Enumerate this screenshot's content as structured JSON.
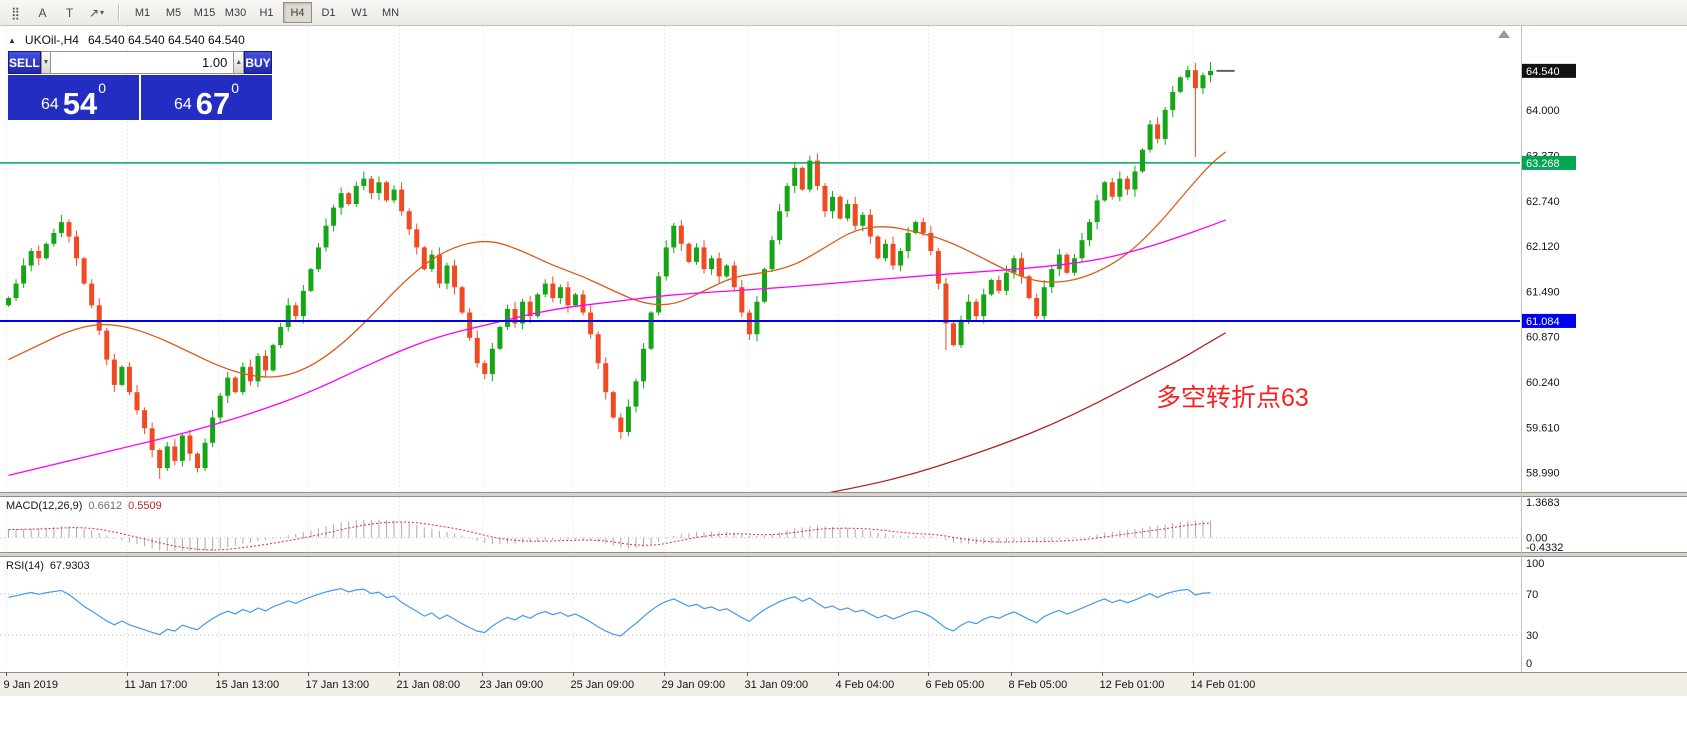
{
  "toolbar": {
    "icons": [
      {
        "name": "snap-grid-icon",
        "glyph": "⣿"
      },
      {
        "name": "text-label-icon",
        "glyph": "A"
      },
      {
        "name": "text-frame-icon",
        "glyph": "T"
      },
      {
        "name": "draw-tools-icon",
        "glyph": "↗",
        "dropdown": true
      }
    ],
    "timeframes": [
      "M1",
      "M5",
      "M15",
      "M30",
      "H1",
      "H4",
      "D1",
      "W1",
      "MN"
    ],
    "active_timeframe": "H4"
  },
  "chart": {
    "title": "UKOil-,H4",
    "quote": "64.540 64.540 64.540 64.540"
  },
  "trade_panel": {
    "sell_label": "SELL",
    "buy_label": "BUY",
    "volume": "1.00",
    "sell_price": {
      "whole": "64",
      "pips": "54",
      "pipette": "0"
    },
    "buy_price": {
      "whole": "64",
      "pips": "67",
      "pipette": "0"
    }
  },
  "chart_data": {
    "type": "candlestick",
    "symbol": "UKOil-",
    "timeframe": "H4",
    "ylim": [
      58.72,
      65.16
    ],
    "grid_prices": [
      {
        "v": 64.0,
        "label": "64.000"
      },
      {
        "v": 63.37,
        "label": "63.370"
      },
      {
        "v": 62.74,
        "label": "62.740"
      },
      {
        "v": 62.12,
        "label": "62.120"
      },
      {
        "v": 61.49,
        "label": "61.490"
      },
      {
        "v": 60.87,
        "label": "60.870"
      },
      {
        "v": 60.24,
        "label": "60.240"
      },
      {
        "v": 59.61,
        "label": "59.610"
      },
      {
        "v": 58.99,
        "label": "58.990"
      }
    ],
    "first_open": 61.3,
    "closes": [
      61.4,
      61.6,
      61.85,
      62.05,
      61.95,
      62.15,
      62.3,
      62.45,
      62.25,
      61.95,
      61.6,
      61.3,
      60.95,
      60.55,
      60.2,
      60.45,
      60.1,
      59.85,
      59.6,
      59.3,
      59.05,
      59.35,
      59.15,
      59.5,
      59.25,
      59.05,
      59.4,
      59.75,
      60.05,
      60.3,
      60.1,
      60.45,
      60.25,
      60.6,
      60.4,
      60.75,
      61.0,
      61.3,
      61.15,
      61.5,
      61.8,
      62.1,
      62.4,
      62.65,
      62.85,
      62.7,
      62.95,
      63.05,
      62.85,
      63.0,
      62.75,
      62.9,
      62.6,
      62.35,
      62.1,
      61.8,
      62.0,
      61.6,
      61.85,
      61.55,
      61.2,
      60.85,
      60.5,
      60.35,
      60.7,
      61.0,
      61.25,
      61.05,
      61.35,
      61.15,
      61.45,
      61.6,
      61.4,
      61.55,
      61.3,
      61.45,
      61.2,
      60.9,
      60.5,
      60.1,
      59.75,
      59.55,
      59.9,
      60.25,
      60.7,
      61.2,
      61.7,
      62.1,
      62.4,
      62.15,
      61.9,
      62.1,
      61.8,
      61.95,
      61.7,
      61.85,
      61.55,
      61.2,
      60.9,
      61.35,
      61.8,
      62.2,
      62.6,
      62.95,
      63.2,
      62.9,
      63.3,
      62.95,
      62.6,
      62.8,
      62.5,
      62.7,
      62.4,
      62.55,
      62.25,
      61.95,
      62.15,
      61.85,
      62.05,
      62.3,
      62.45,
      62.3,
      62.05,
      61.6,
      61.05,
      60.75,
      61.1,
      61.35,
      61.15,
      61.45,
      61.65,
      61.5,
      61.75,
      61.95,
      61.7,
      61.4,
      61.15,
      61.55,
      61.8,
      62.0,
      61.75,
      61.95,
      62.2,
      62.45,
      62.75,
      63.0,
      62.8,
      63.05,
      62.9,
      63.15,
      63.45,
      63.8,
      63.6,
      64.0,
      64.25,
      64.45,
      64.55,
      64.3,
      64.48,
      64.54
    ],
    "wick_overrides": {
      "20": {
        "low": 58.9
      },
      "25": {
        "low": 58.99
      },
      "63": {
        "low": 60.28
      },
      "81": {
        "low": 59.45
      },
      "106": {
        "high": 63.37
      },
      "124": {
        "low": 60.68
      },
      "157": {
        "low": 63.35
      },
      "159": {
        "high": 64.66
      }
    },
    "bull_color": "#16a516",
    "bear_color": "#f04a22",
    "hlines": [
      {
        "price": 63.268,
        "label": "63.268",
        "color": "#00a651",
        "width": 1.5
      },
      {
        "price": 61.084,
        "label": "61.084",
        "color": "#0000f0",
        "width": 2
      }
    ],
    "current_price": {
      "value": 64.54,
      "label": "64.540",
      "badge_color": "#111111"
    },
    "moving_averages": [
      {
        "name": "ma-fast-line",
        "color": "#dd5a18",
        "points": [
          [
            0,
            60.55
          ],
          [
            4,
            60.75
          ],
          [
            8,
            60.95
          ],
          [
            12,
            61.05
          ],
          [
            16,
            61.0
          ],
          [
            20,
            60.85
          ],
          [
            24,
            60.65
          ],
          [
            28,
            60.45
          ],
          [
            32,
            60.32
          ],
          [
            36,
            60.3
          ],
          [
            40,
            60.45
          ],
          [
            44,
            60.75
          ],
          [
            48,
            61.15
          ],
          [
            52,
            61.6
          ],
          [
            56,
            61.95
          ],
          [
            60,
            62.15
          ],
          [
            64,
            62.2
          ],
          [
            68,
            62.05
          ],
          [
            72,
            61.85
          ],
          [
            76,
            61.7
          ],
          [
            80,
            61.5
          ],
          [
            84,
            61.32
          ],
          [
            88,
            61.3
          ],
          [
            92,
            61.5
          ],
          [
            96,
            61.7
          ],
          [
            100,
            61.75
          ],
          [
            104,
            61.85
          ],
          [
            108,
            62.1
          ],
          [
            112,
            62.35
          ],
          [
            116,
            62.4
          ],
          [
            120,
            62.32
          ],
          [
            124,
            62.2
          ],
          [
            128,
            62.0
          ],
          [
            132,
            61.78
          ],
          [
            136,
            61.62
          ],
          [
            140,
            61.62
          ],
          [
            144,
            61.75
          ],
          [
            148,
            62.0
          ],
          [
            152,
            62.4
          ],
          [
            156,
            62.9
          ],
          [
            159,
            63.25
          ],
          [
            161,
            63.42
          ]
        ]
      },
      {
        "name": "ma-medium-line",
        "color": "#ff00ff",
        "points": [
          [
            0,
            58.95
          ],
          [
            8,
            59.15
          ],
          [
            16,
            59.35
          ],
          [
            24,
            59.55
          ],
          [
            32,
            59.8
          ],
          [
            40,
            60.1
          ],
          [
            48,
            60.5
          ],
          [
            56,
            60.85
          ],
          [
            64,
            61.05
          ],
          [
            72,
            61.25
          ],
          [
            80,
            61.35
          ],
          [
            88,
            61.45
          ],
          [
            96,
            61.5
          ],
          [
            104,
            61.56
          ],
          [
            112,
            61.63
          ],
          [
            120,
            61.7
          ],
          [
            128,
            61.76
          ],
          [
            136,
            61.82
          ],
          [
            144,
            61.92
          ],
          [
            150,
            62.08
          ],
          [
            155,
            62.25
          ],
          [
            159,
            62.4
          ],
          [
            161,
            62.48
          ]
        ]
      },
      {
        "name": "ma-slow-line",
        "color": "#b22222",
        "points": [
          [
            108,
            58.7
          ],
          [
            114,
            58.82
          ],
          [
            120,
            58.98
          ],
          [
            126,
            59.18
          ],
          [
            132,
            59.4
          ],
          [
            138,
            59.65
          ],
          [
            144,
            59.95
          ],
          [
            150,
            60.28
          ],
          [
            155,
            60.55
          ],
          [
            159,
            60.8
          ],
          [
            161,
            60.92
          ]
        ]
      }
    ],
    "x_labels": [
      {
        "i": 0,
        "label": "9 Jan 2019"
      },
      {
        "i": 16,
        "label": "11 Jan 17:00"
      },
      {
        "i": 28,
        "label": "15 Jan 13:00"
      },
      {
        "i": 40,
        "label": "17 Jan 13:00"
      },
      {
        "i": 52,
        "label": "21 Jan 08:00"
      },
      {
        "i": 63,
        "label": "23 Jan 09:00"
      },
      {
        "i": 75,
        "label": "25 Jan 09:00"
      },
      {
        "i": 87,
        "label": "29 Jan 09:00"
      },
      {
        "i": 98,
        "label": "31 Jan 09:00"
      },
      {
        "i": 110,
        "label": "4 Feb 04:00"
      },
      {
        "i": 122,
        "label": "6 Feb 05:00"
      },
      {
        "i": 133,
        "label": "8 Feb 05:00"
      },
      {
        "i": 145,
        "label": "12 Feb 01:00"
      },
      {
        "i": 157,
        "label": "14 Feb 01:00"
      }
    ],
    "annotation": {
      "text": "多空转折点63",
      "color": "#fb1f1f"
    }
  },
  "indicators": {
    "macd": {
      "label": "MACD(12,26,9)",
      "value": "0.6612",
      "signal_value": "0.5509",
      "axis": {
        "ylim": [
          -0.4332,
          1.3683
        ],
        "labels": [
          {
            "v": 1.3683,
            "text": "1.3683"
          },
          {
            "v": 0,
            "text": "0.00"
          },
          {
            "v": -0.4332,
            "text": "-0.4332"
          }
        ]
      },
      "histogram_color": "#ababab",
      "signal_color": "#e03030"
    },
    "rsi": {
      "label": "RSI(14)",
      "value": "67.9303",
      "levels": [
        {
          "v": 100,
          "text": "100",
          "line": false
        },
        {
          "v": 70,
          "text": "70",
          "line": true
        },
        {
          "v": 30,
          "text": "30",
          "line": true
        },
        {
          "v": 0,
          "text": "0",
          "line": false
        }
      ],
      "line_color": "#4499ee"
    }
  }
}
